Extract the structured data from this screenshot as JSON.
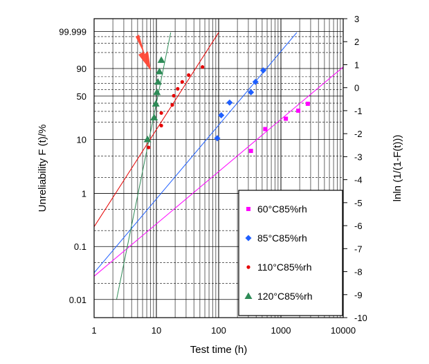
{
  "chart_data": {
    "type": "scatter",
    "title": "",
    "xlabel": "Test time (h)",
    "ylabel_left": "Unreliability F (t)/%",
    "ylabel_right": "lnln (1/(1-F(t)))",
    "x_scale": "log",
    "y_scale": "weibull",
    "xlim": [
      1,
      10000
    ],
    "ylim_lnln": [
      -10,
      3
    ],
    "grid": true,
    "legend_position": "bottom-right",
    "x_ticks": [
      "1",
      "10",
      "100",
      "1000",
      "10000"
    ],
    "y_left_ticks": [
      {
        "label": "99.999",
        "F": 99.999
      },
      {
        "label": "90",
        "F": 90
      },
      {
        "label": "50",
        "F": 50
      },
      {
        "label": "10",
        "F": 10
      },
      {
        "label": "1",
        "F": 1
      },
      {
        "label": "0.1",
        "F": 0.1
      },
      {
        "label": "0.01",
        "F": 0.01
      }
    ],
    "y_right_ticks": [
      "3",
      "2",
      "1",
      "0",
      "-1",
      "-2",
      "-3",
      "-4",
      "-5",
      "-6",
      "-7",
      "-8",
      "-9",
      "-10"
    ],
    "series": [
      {
        "name": "60°C85%rh",
        "color": "#ff00ff",
        "marker": "square",
        "x": [
          330,
          560,
          1200,
          1900,
          2700
        ],
        "y": [
          -2.75,
          -1.8,
          -1.35,
          -1.0,
          -0.7
        ],
        "fit": {
          "x1": 1,
          "y1": -8.2,
          "x2": 10000,
          "y2": 0.9
        }
      },
      {
        "name": "85°C85%rh",
        "color": "#1f5fff",
        "marker": "diamond",
        "x": [
          95,
          110,
          150,
          330,
          390,
          520
        ],
        "y": [
          -2.2,
          -1.2,
          -0.65,
          -0.2,
          0.25,
          0.75
        ],
        "fit": {
          "x1": 1,
          "y1": -8.05,
          "x2": 1800,
          "y2": 2.4
        }
      },
      {
        "name": "110°C85%rh",
        "color": "#e60000",
        "marker": "circle",
        "x": [
          7.5,
          12,
          12,
          18,
          19,
          22,
          26,
          33,
          55
        ],
        "y": [
          -2.6,
          -1.65,
          -1.1,
          -0.75,
          -0.35,
          -0.05,
          0.25,
          0.55,
          0.9
        ],
        "fit": {
          "x1": 1,
          "y1": -6.05,
          "x2": 100,
          "y2": 2.4
        }
      },
      {
        "name": "120°C85%rh",
        "color": "#2e8b57",
        "marker": "triangle",
        "x": [
          7.2,
          9.2,
          9.8,
          10.2,
          10.6,
          11.2,
          12
        ],
        "y": [
          -2.25,
          -1.3,
          -0.7,
          -0.2,
          0.25,
          0.7,
          1.2
        ],
        "fit": {
          "x1": 2.3,
          "y1": -9.2,
          "x2": 17,
          "y2": 2.4
        }
      }
    ]
  }
}
